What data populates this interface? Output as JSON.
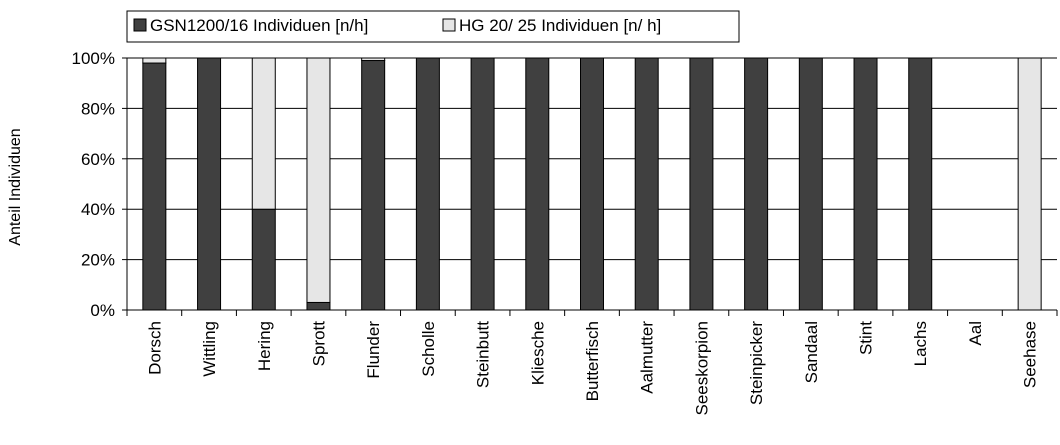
{
  "chart_data": {
    "type": "bar",
    "stacked": "percent",
    "ylabel": "Anteil Individuen",
    "xlabel": "",
    "ylim": [
      0,
      100
    ],
    "yticks": [
      "0%",
      "20%",
      "40%",
      "60%",
      "80%",
      "100%"
    ],
    "ytick_values": [
      0,
      20,
      40,
      60,
      80,
      100
    ],
    "grid": "y-major",
    "legend_position": "top-left",
    "categories": [
      "Dorsch",
      "Wittling",
      "Hering",
      "Sprott",
      "Flunder",
      "Scholle",
      "Steinbutt",
      "Kliesche",
      "Butterfisch",
      "Aalmutter",
      "Seeskorpion",
      "Steinpicker",
      "Sandaal",
      "Stint",
      "Lachs",
      "Aal",
      "Seehase"
    ],
    "series": [
      {
        "name": "GSN1200/16 Individuen [n/h]",
        "color": "#404040",
        "values": [
          98,
          100,
          40,
          3,
          99,
          100,
          100,
          100,
          100,
          100,
          100,
          100,
          100,
          100,
          100,
          0,
          0
        ]
      },
      {
        "name": "HG 20/ 25 Individuen [n/ h]",
        "color": "#e6e6e6",
        "values": [
          2,
          0,
          60,
          97,
          1,
          0,
          0,
          0,
          0,
          0,
          0,
          0,
          0,
          0,
          0,
          0,
          100
        ]
      }
    ]
  }
}
